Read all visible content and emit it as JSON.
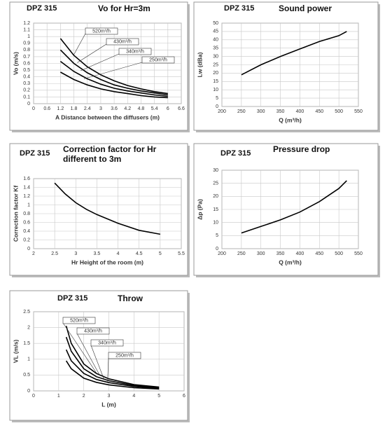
{
  "chart_data": [
    {
      "type": "line",
      "label": "DPZ 315",
      "title": "Vo for Hr=3m",
      "xlabel": "A Distance between the diffusers (m)",
      "ylabel": "Vo (m/s)",
      "x": [
        1.2,
        1.8,
        2.4,
        3,
        3.6,
        4.2,
        4.8,
        5.4,
        6
      ],
      "series": [
        {
          "name": "520m³/h",
          "color": "#000000",
          "values": [
            0.97,
            0.72,
            0.55,
            0.43,
            0.34,
            0.27,
            0.22,
            0.18,
            0.15
          ]
        },
        {
          "name": "430m³/h",
          "color": "#000000",
          "values": [
            0.8,
            0.6,
            0.46,
            0.36,
            0.28,
            0.23,
            0.19,
            0.16,
            0.13
          ]
        },
        {
          "name": "340m³/h",
          "color": "#000000",
          "values": [
            0.63,
            0.48,
            0.37,
            0.29,
            0.23,
            0.19,
            0.16,
            0.13,
            0.11
          ]
        },
        {
          "name": "250m³/h",
          "color": "#000000",
          "values": [
            0.47,
            0.36,
            0.28,
            0.22,
            0.18,
            0.15,
            0.12,
            0.1,
            0.09
          ]
        }
      ],
      "xlim": [
        0,
        6.6
      ],
      "xticks": [
        0,
        0.6,
        1.2,
        1.8,
        2.4,
        3,
        3.6,
        4.2,
        4.8,
        5.4,
        6,
        6.6
      ],
      "ylim": [
        0,
        1.2
      ],
      "yticks": [
        0,
        0.1,
        0.2,
        0.3,
        0.4,
        0.5,
        0.6,
        0.7,
        0.8,
        0.9,
        1,
        1.1,
        1.2
      ],
      "grid": true
    },
    {
      "type": "line",
      "label": "DPZ 315",
      "title": "Sound power",
      "xlabel": "Q (m³/h)",
      "ylabel": "Lw (dBa)",
      "x": [
        250,
        300,
        350,
        400,
        450,
        500,
        520
      ],
      "series": [
        {
          "name": "Lw",
          "color": "#000000",
          "values": [
            19,
            25,
            30,
            34.5,
            39,
            42.5,
            45
          ]
        }
      ],
      "xlim": [
        200,
        550
      ],
      "xticks": [
        200,
        250,
        300,
        350,
        400,
        450,
        500,
        550
      ],
      "ylim": [
        0,
        50
      ],
      "yticks": [
        0,
        5,
        10,
        15,
        20,
        25,
        30,
        35,
        40,
        45,
        50
      ],
      "grid": true
    },
    {
      "type": "line",
      "label": "DPZ 315",
      "title": "Correction factor for Hr different to 3m",
      "xlabel": "Hr Height  of the room  (m)",
      "ylabel": "Correction factor Kf",
      "x": [
        2.5,
        2.75,
        3,
        3.25,
        3.5,
        4,
        4.5,
        5
      ],
      "series": [
        {
          "name": "Kf",
          "color": "#000000",
          "values": [
            1.5,
            1.25,
            1.05,
            0.9,
            0.78,
            0.58,
            0.42,
            0.33
          ]
        }
      ],
      "xlim": [
        2,
        5.5
      ],
      "xticks": [
        2,
        2.5,
        3,
        3.5,
        4,
        4.5,
        5,
        5.5
      ],
      "ylim": [
        0,
        1.6
      ],
      "yticks": [
        0,
        0.2,
        0.4,
        0.6,
        0.8,
        1,
        1.2,
        1.4,
        1.6
      ],
      "grid": true
    },
    {
      "type": "line",
      "label": "DPZ 315",
      "title": "Pressure drop",
      "xlabel": "Q (m³/h)",
      "ylabel": "Δp (Pa)",
      "x": [
        250,
        300,
        350,
        400,
        450,
        500,
        520
      ],
      "series": [
        {
          "name": "Δp",
          "color": "#000000",
          "values": [
            6,
            8.5,
            11,
            14,
            18,
            23,
            26
          ]
        }
      ],
      "xlim": [
        200,
        550
      ],
      "xticks": [
        200,
        250,
        300,
        350,
        400,
        450,
        500,
        550
      ],
      "ylim": [
        0,
        30
      ],
      "yticks": [
        0,
        5,
        10,
        15,
        20,
        25,
        30
      ],
      "grid": true
    },
    {
      "type": "line",
      "label": "DPZ 315",
      "title": "Throw",
      "xlabel": "L (m)",
      "ylabel": "VL (m/s)",
      "x": [
        1.3,
        1.5,
        2,
        2.5,
        3,
        4,
        5
      ],
      "series": [
        {
          "name": "520m³/h",
          "color": "#000000",
          "values": [
            2.05,
            1.5,
            0.85,
            0.55,
            0.38,
            0.2,
            0.12
          ]
        },
        {
          "name": "430m³/h",
          "color": "#000000",
          "values": [
            1.7,
            1.25,
            0.7,
            0.45,
            0.32,
            0.17,
            0.1
          ]
        },
        {
          "name": "340m³/h",
          "color": "#000000",
          "values": [
            1.3,
            0.95,
            0.55,
            0.36,
            0.26,
            0.14,
            0.08
          ]
        },
        {
          "name": "250m³/h",
          "color": "#000000",
          "values": [
            0.95,
            0.7,
            0.4,
            0.27,
            0.19,
            0.1,
            0.06
          ]
        }
      ],
      "xlim": [
        0,
        6
      ],
      "xticks": [
        0,
        1,
        2,
        3,
        4,
        5,
        6
      ],
      "ylim": [
        0,
        2.5
      ],
      "yticks": [
        0,
        0.5,
        1,
        1.5,
        2,
        2.5
      ],
      "grid": true
    }
  ]
}
